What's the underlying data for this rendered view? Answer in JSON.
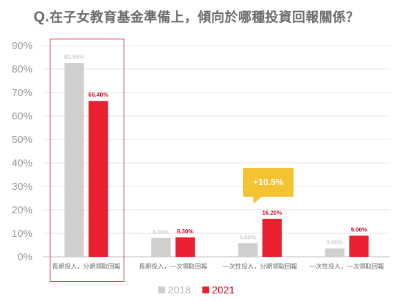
{
  "chart_data": {
    "type": "bar",
    "title_prefix": "Q.",
    "title": "在子女教育基金準備上，傾向於哪種投資回報關係？",
    "categories": [
      "長期投入，分期領取回報",
      "長期投入，一次領取回報",
      "一次性投入，分期領取回報",
      "一次性投入，一次領取回報"
    ],
    "series": [
      {
        "name": "2018",
        "values": [
          82.6,
          8.0,
          5.8,
          3.6
        ],
        "labels": [
          "82.60%",
          "8.00%",
          "5.80%",
          "3.60%"
        ],
        "color": "#d0cfcd",
        "label_color": "#cfcfcf"
      },
      {
        "name": "2021",
        "values": [
          66.4,
          8.3,
          16.2,
          9.0
        ],
        "labels": [
          "66.40%",
          "8.30%",
          "16.20%",
          "9.00%"
        ],
        "color": "#e8202f",
        "label_color": "#c8102e"
      }
    ],
    "ylim": [
      0,
      90
    ],
    "yticks": [
      0,
      10,
      20,
      30,
      40,
      50,
      60,
      70,
      80,
      90
    ],
    "ytick_labels": [
      "0%",
      "10%",
      "20%",
      "30%",
      "40%",
      "50%",
      "60%",
      "70%",
      "80%",
      "90%"
    ],
    "grid": true,
    "legend_position": "bottom",
    "annotation": {
      "text": "+10.5%",
      "category_index": 2,
      "color": "#f4c332"
    },
    "highlight_category_index": 0,
    "highlight_color": "#c8102e"
  }
}
